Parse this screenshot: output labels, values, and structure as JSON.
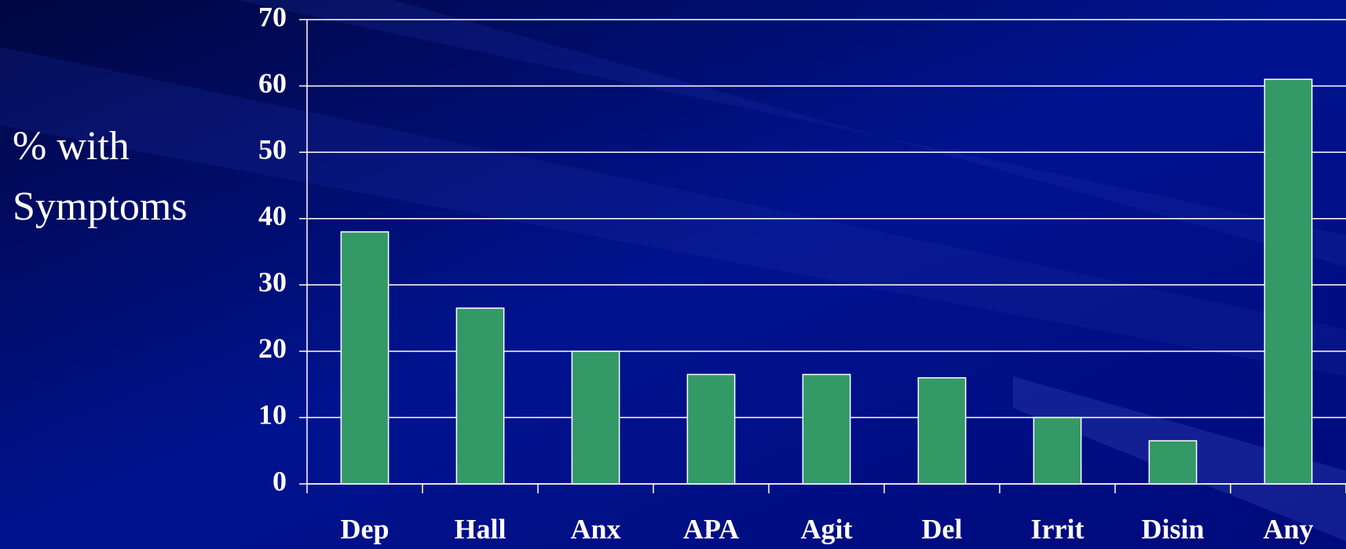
{
  "chart_data": {
    "type": "bar",
    "ylabel": [
      "% with",
      "Symptoms"
    ],
    "categories": [
      "Dep",
      "Hall",
      "Anx",
      "APA",
      "Agit",
      "Del",
      "Irrit",
      "Disin",
      "Any"
    ],
    "values": [
      38,
      26.5,
      20,
      16.5,
      16.5,
      16,
      10,
      6.5,
      61
    ],
    "color": "#339966",
    "ylim": [
      0,
      70
    ],
    "yticks": [
      0,
      10,
      20,
      30,
      40,
      50,
      60,
      70
    ],
    "grid": true
  }
}
